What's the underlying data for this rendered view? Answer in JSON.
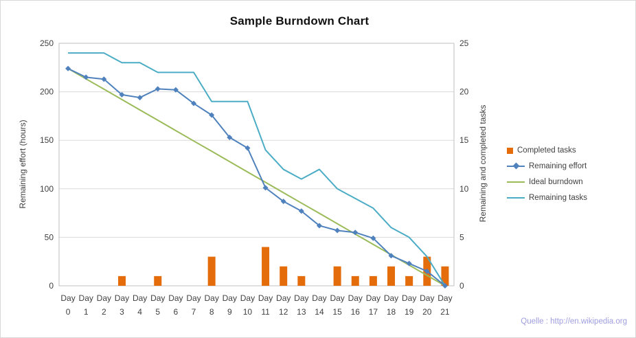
{
  "figure": {
    "source_note": "Quelle : http://en.wikipedia.org",
    "source_note_color": "#9E9EE0",
    "background": "#FFFFFF",
    "border_color": "#D8D8D8"
  },
  "chart_data": {
    "type": "combo-bar-line",
    "title": "Sample Burndown Chart",
    "x_label_prefix": "Day",
    "categories": [
      "0",
      "1",
      "2",
      "3",
      "4",
      "5",
      "6",
      "7",
      "8",
      "9",
      "10",
      "11",
      "12",
      "13",
      "14",
      "15",
      "16",
      "17",
      "18",
      "19",
      "20",
      "21"
    ],
    "left_axis": {
      "label": "Remaining effort (hours)",
      "min": 0,
      "max": 250,
      "step": 50
    },
    "right_axis": {
      "label": "Remaining and completed tasks",
      "min": 0,
      "max": 25,
      "step": 5
    },
    "grid": true,
    "legend_position": "right",
    "gridline_color": "#D9D9D9",
    "plot_border_color": "#BFBFBF",
    "series": [
      {
        "name": "Completed tasks",
        "type": "bar",
        "axis": "right",
        "color": "#E46C0A",
        "values": [
          0,
          0,
          0,
          1,
          0,
          1,
          0,
          0,
          3,
          0,
          0,
          4,
          2,
          1,
          0,
          2,
          1,
          1,
          2,
          1,
          3,
          2
        ]
      },
      {
        "name": "Remaining effort",
        "type": "line",
        "marker": "diamond",
        "axis": "left",
        "color": "#4F81BD",
        "values": [
          224,
          215,
          213,
          197,
          194,
          203,
          202,
          188,
          176,
          153,
          142,
          101,
          87,
          77,
          62,
          57,
          55,
          49,
          31,
          23,
          15,
          0
        ]
      },
      {
        "name": "Ideal burndown",
        "type": "line",
        "axis": "left",
        "color": "#9BBB59",
        "values": [
          224,
          213.3,
          202.7,
          192,
          181.3,
          170.7,
          160,
          149.3,
          138.7,
          128,
          117.3,
          106.7,
          96,
          85.3,
          74.7,
          64,
          53.3,
          42.7,
          32,
          21.3,
          10.7,
          0
        ]
      },
      {
        "name": "Remaining tasks",
        "type": "line",
        "axis": "right",
        "color": "#4BACC6",
        "values": [
          24,
          24,
          24,
          23,
          23,
          22,
          22,
          22,
          19,
          19,
          19,
          14,
          12,
          11,
          12,
          10,
          9,
          8,
          6,
          5,
          3,
          0
        ]
      }
    ]
  }
}
